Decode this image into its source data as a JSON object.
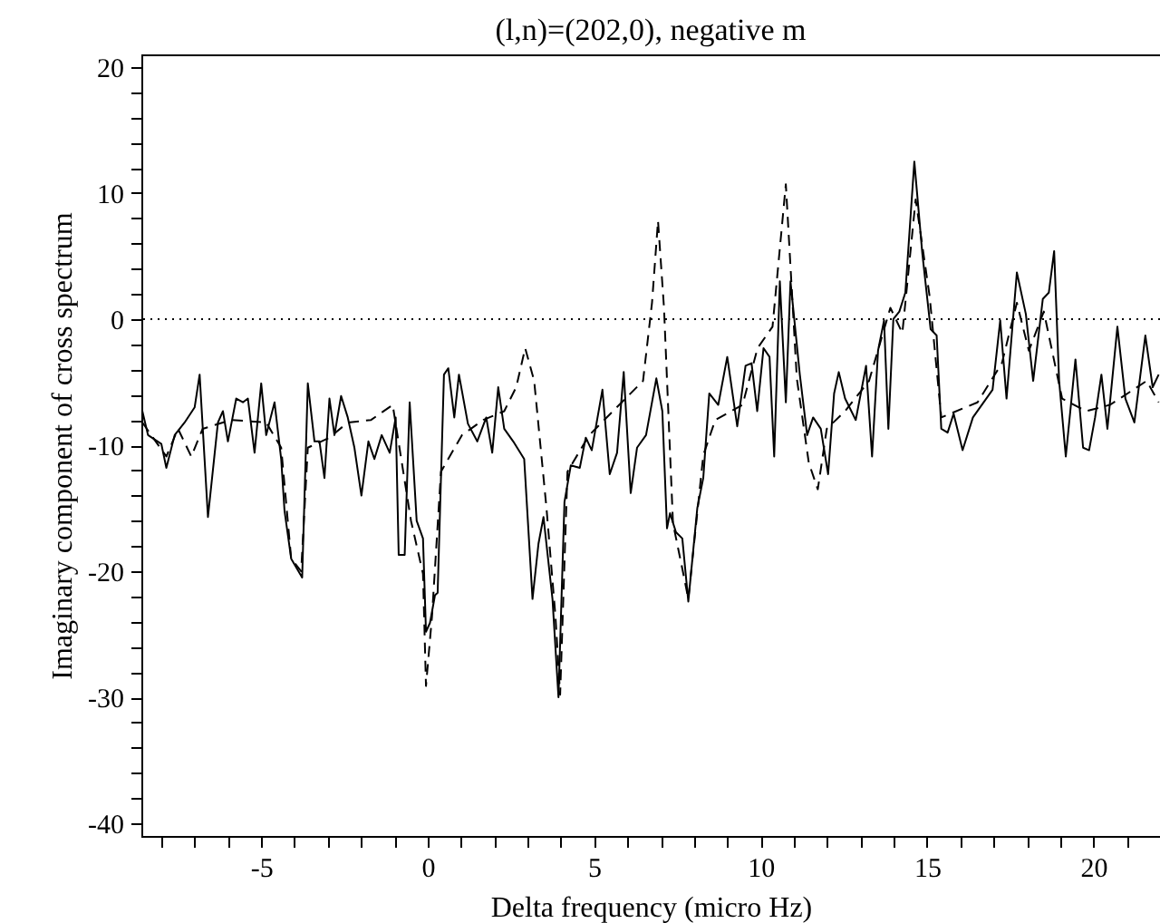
{
  "chart_data": {
    "type": "line",
    "title": "(l,n)=(202,0), negative m",
    "xlabel": "Delta frequency (micro Hz)",
    "ylabel": "Imaginary component of cross spectrum",
    "xlim": [
      -8.6,
      22
    ],
    "ylim": [
      -41,
      21
    ],
    "xticks": [
      {
        "value": -8,
        "label": null
      },
      {
        "value": -7,
        "label": null
      },
      {
        "value": -6,
        "label": null
      },
      -5,
      {
        "value": -4,
        "label": null
      },
      {
        "value": -3,
        "label": null
      },
      {
        "value": -2,
        "label": null
      },
      {
        "value": -1,
        "label": null
      },
      0,
      {
        "value": 1,
        "label": null
      },
      {
        "value": 2,
        "label": null
      },
      {
        "value": 3,
        "label": null
      },
      {
        "value": 4,
        "label": null
      },
      5,
      {
        "value": 6,
        "label": null
      },
      {
        "value": 7,
        "label": null
      },
      {
        "value": 8,
        "label": null
      },
      {
        "value": 9,
        "label": null
      },
      10,
      {
        "value": 11,
        "label": null
      },
      {
        "value": 12,
        "label": null
      },
      {
        "value": 13,
        "label": null
      },
      {
        "value": 14,
        "label": null
      },
      15,
      {
        "value": 16,
        "label": null
      },
      {
        "value": 17,
        "label": null
      },
      {
        "value": 18,
        "label": null
      },
      {
        "value": 19,
        "label": null
      },
      20,
      {
        "value": 21,
        "label": null
      }
    ],
    "yticks": [
      -40,
      {
        "value": -38,
        "label": null
      },
      {
        "value": -36,
        "label": null
      },
      {
        "value": -34,
        "label": null
      },
      {
        "value": -32,
        "label": null
      },
      -30,
      {
        "value": -28,
        "label": null
      },
      {
        "value": -26,
        "label": null
      },
      {
        "value": -24,
        "label": null
      },
      {
        "value": -22,
        "label": null
      },
      -20,
      {
        "value": -18,
        "label": null
      },
      {
        "value": -16,
        "label": null
      },
      {
        "value": -14,
        "label": null
      },
      {
        "value": -12,
        "label": null
      },
      -10,
      {
        "value": -8,
        "label": null
      },
      {
        "value": -6,
        "label": null
      },
      {
        "value": -4,
        "label": null
      },
      {
        "value": -2,
        "label": null
      },
      0,
      {
        "value": 2,
        "label": null
      },
      {
        "value": 4,
        "label": null
      },
      {
        "value": 6,
        "label": null
      },
      {
        "value": 8,
        "label": null
      },
      10,
      {
        "value": 12,
        "label": null
      },
      {
        "value": 14,
        "label": null
      },
      {
        "value": 16,
        "label": null
      },
      {
        "value": 18,
        "label": null
      },
      20
    ],
    "ref_lines": [
      {
        "axis": "y",
        "value": 0,
        "line_style": "dotted",
        "color": "#000000"
      }
    ],
    "series": [
      {
        "color": "#000000",
        "line_style": "solid",
        "x": [
          -8.57,
          -8.4,
          -8.0,
          -7.85,
          -7.6,
          -7.3,
          -7.0,
          -6.85,
          -6.6,
          -6.3,
          -6.15,
          -6.0,
          -5.75,
          -5.55,
          -5.4,
          -5.2,
          -5.0,
          -4.85,
          -4.6,
          -4.4,
          -4.3,
          -4.1,
          -3.77,
          -3.6,
          -3.4,
          -3.25,
          -3.1,
          -2.95,
          -2.8,
          -2.6,
          -2.4,
          -2.2,
          -1.99,
          -1.78,
          -1.6,
          -1.38,
          -1.14,
          -0.96,
          -0.87,
          -0.69,
          -0.54,
          -0.33,
          -0.14,
          -0.05,
          0.07,
          0.22,
          0.3,
          0.49,
          0.62,
          0.8,
          0.94,
          1.21,
          1.49,
          1.76,
          1.94,
          2.12,
          2.3,
          2.57,
          2.9,
          3.15,
          3.33,
          3.48,
          3.75,
          3.93,
          4.11,
          4.3,
          4.57,
          4.75,
          4.93,
          5.25,
          5.47,
          5.69,
          5.89,
          6.1,
          6.29,
          6.56,
          6.87,
          7.05,
          7.19,
          7.28,
          7.46,
          7.65,
          7.83,
          8.1,
          8.28,
          8.46,
          8.73,
          9.0,
          9.3,
          9.55,
          9.73,
          9.9,
          10.09,
          10.27,
          10.41,
          10.58,
          10.76,
          10.9,
          11.18,
          11.4,
          11.58,
          11.81,
          12.03,
          12.21,
          12.35,
          12.54,
          12.86,
          13.17,
          13.35,
          13.53,
          13.71,
          13.84,
          13.99,
          14.17,
          14.35,
          14.62,
          14.86,
          15.11,
          15.29,
          15.43,
          15.62,
          15.8,
          16.07,
          16.38,
          16.97,
          17.2,
          17.39,
          17.7,
          17.97,
          18.19,
          18.48,
          18.66,
          18.82,
          18.97,
          19.17,
          19.46,
          19.69,
          19.87,
          20.05,
          20.24,
          20.42,
          20.72,
          20.96,
          21.23,
          21.56,
          21.78,
          21.96
        ],
        "values": [
          -7.3,
          -9.2,
          -9.9,
          -11.8,
          -9.2,
          -8.2,
          -7.0,
          -4.4,
          -15.7,
          -8.2,
          -7.3,
          -9.7,
          -6.3,
          -6.6,
          -6.3,
          -10.6,
          -5.1,
          -9.2,
          -6.6,
          -11.1,
          -15.2,
          -19.0,
          -20.5,
          -5.1,
          -9.7,
          -9.7,
          -12.6,
          -6.3,
          -9.2,
          -6.1,
          -7.8,
          -10.2,
          -14.0,
          -9.7,
          -11.1,
          -9.2,
          -10.6,
          -7.8,
          -18.7,
          -18.7,
          -6.6,
          -16.0,
          -17.4,
          -24.8,
          -24.1,
          -21.9,
          -21.7,
          -4.4,
          -3.9,
          -7.8,
          -4.4,
          -8.3,
          -9.7,
          -7.8,
          -10.6,
          -5.4,
          -8.7,
          -9.7,
          -11.1,
          -22.2,
          -17.8,
          -15.7,
          -22.2,
          -30.0,
          -14.5,
          -11.6,
          -11.8,
          -9.4,
          -10.4,
          -5.6,
          -12.3,
          -10.6,
          -4.2,
          -13.8,
          -10.2,
          -9.2,
          -4.7,
          -7.3,
          -16.6,
          -15.4,
          -16.9,
          -17.4,
          -22.4,
          -15.0,
          -12.6,
          -5.9,
          -6.8,
          -3.0,
          -8.5,
          -3.7,
          -3.5,
          -7.3,
          -2.3,
          -3.0,
          -10.9,
          3.0,
          -6.6,
          3.0,
          -4.4,
          -9.2,
          -7.8,
          -8.7,
          -12.3,
          -5.9,
          -4.2,
          -6.3,
          -8.0,
          -3.7,
          -10.9,
          -2.5,
          -0.1,
          -8.7,
          0.0,
          0.6,
          2.1,
          12.5,
          5.2,
          -0.8,
          -1.3,
          -8.7,
          -9.0,
          -7.5,
          -10.4,
          -7.8,
          -5.6,
          -0.1,
          -6.3,
          3.7,
          0.4,
          -4.9,
          1.6,
          2.1,
          5.4,
          -4.9,
          -10.9,
          -3.2,
          -10.2,
          -10.4,
          -7.8,
          -4.4,
          -8.7,
          -0.6,
          -6.3,
          -8.2,
          -1.3,
          -5.4,
          -4.4
        ]
      },
      {
        "color": "#000000",
        "line_style": "dashed",
        "x": [
          -8.57,
          -7.85,
          -7.5,
          -7.1,
          -6.76,
          -5.9,
          -4.85,
          -4.4,
          -4.1,
          -3.8,
          -3.6,
          -2.95,
          -2.4,
          -1.7,
          -1.05,
          -0.5,
          -0.14,
          -0.05,
          0.13,
          0.4,
          1.03,
          1.67,
          2.3,
          2.66,
          2.93,
          3.2,
          3.57,
          3.84,
          3.98,
          4.2,
          4.74,
          4.93,
          5.83,
          6.47,
          6.74,
          6.92,
          7.1,
          7.37,
          7.65,
          7.83,
          8.28,
          8.64,
          9.46,
          9.91,
          10.36,
          10.76,
          11.09,
          11.45,
          11.72,
          11.99,
          12.54,
          13.26,
          13.9,
          14.26,
          14.66,
          15.08,
          15.43,
          16.52,
          17.25,
          17.7,
          18.06,
          18.51,
          19.06,
          19.78,
          20.5,
          21.6,
          21.96
        ],
        "values": [
          -8.2,
          -10.9,
          -8.7,
          -10.9,
          -8.7,
          -8.0,
          -8.2,
          -10.2,
          -19.0,
          -20.0,
          -10.2,
          -9.4,
          -8.2,
          -8.0,
          -6.8,
          -16.0,
          -20.2,
          -29.1,
          -23.6,
          -12.1,
          -9.2,
          -8.0,
          -7.3,
          -5.4,
          -2.3,
          -4.9,
          -15.0,
          -23.6,
          -29.8,
          -12.1,
          -9.7,
          -9.0,
          -6.6,
          -4.9,
          1.3,
          7.8,
          0.9,
          -16.2,
          -19.8,
          -22.2,
          -10.8,
          -8.0,
          -6.8,
          -2.3,
          -0.6,
          10.7,
          -4.7,
          -11.4,
          -13.5,
          -8.7,
          -7.3,
          -4.9,
          0.9,
          -1.1,
          9.5,
          1.8,
          -7.8,
          -6.6,
          -3.5,
          1.3,
          -2.5,
          0.6,
          -6.3,
          -7.3,
          -6.8,
          -4.9,
          -6.6
        ]
      }
    ]
  }
}
